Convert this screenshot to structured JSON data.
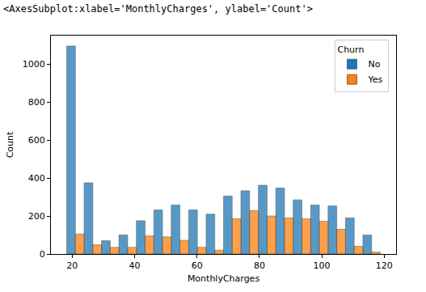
{
  "chart_data": {
    "type": "histogram",
    "annotations": [
      "<AxesSubplot:xlabel='MonthlyCharges', ylabel='Count'>"
    ],
    "x_label": "MonthlyCharges",
    "y_label": "Count",
    "bins": [
      18.25,
      23.83,
      29.42,
      35.0,
      40.58,
      46.17,
      51.75,
      57.33,
      62.92,
      68.5,
      74.08,
      79.67,
      85.25,
      90.83,
      96.42,
      102.0,
      107.58,
      113.17,
      118.75
    ],
    "series": [
      {
        "name": "No",
        "color": "#1f77b4",
        "values": [
          1095,
          375,
          70,
          100,
          175,
          232,
          258,
          232,
          210,
          305,
          333,
          362,
          347,
          285,
          258,
          253,
          190,
          100
        ]
      },
      {
        "name": "Yes",
        "color": "#ff7f0e",
        "values": [
          105,
          48,
          35,
          35,
          95,
          90,
          72,
          35,
          20,
          185,
          228,
          200,
          190,
          185,
          172,
          130,
          40,
          10
        ]
      }
    ],
    "legend_title": "Churn",
    "legend": "upper right",
    "xlim": [
      13.2,
      123.8
    ],
    "xticks": [
      20,
      40,
      60,
      80,
      100,
      120
    ],
    "ylim": [
      0,
      1150
    ],
    "yticks": [
      0,
      200,
      400,
      600,
      800,
      1000
    ],
    "grid": false
  }
}
